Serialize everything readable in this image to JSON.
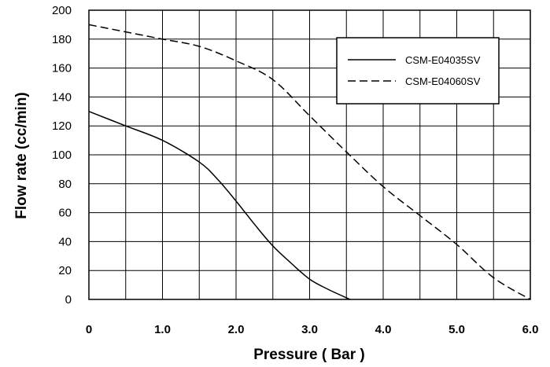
{
  "chart_data": {
    "type": "line",
    "xlabel": "Pressure ( Bar )",
    "ylabel": "Flow rate (cc/min)",
    "xlim": [
      0,
      6.0
    ],
    "ylim": [
      0,
      200
    ],
    "x_ticks": [
      "0",
      "1.0",
      "2.0",
      "3.0",
      "4.0",
      "5.0",
      "6.0"
    ],
    "x_tick_values": [
      0,
      1,
      2,
      3,
      4,
      5,
      6
    ],
    "y_ticks": [
      "0",
      "20",
      "40",
      "60",
      "80",
      "100",
      "120",
      "140",
      "160",
      "180",
      "200"
    ],
    "y_tick_values": [
      0,
      20,
      40,
      60,
      80,
      100,
      120,
      140,
      160,
      180,
      200
    ],
    "grid": true,
    "grid_x_step": 0.5,
    "grid_y_step": 20,
    "legend_position": "top-right",
    "series": [
      {
        "name": "CSM-E04035SV",
        "style": "solid",
        "color": "#000000",
        "x": [
          0,
          0.5,
          1.0,
          1.5,
          1.75,
          2.0,
          2.25,
          2.5,
          2.75,
          3.0,
          3.25,
          3.55
        ],
        "y": [
          130,
          120,
          110,
          95,
          83,
          68,
          52,
          37,
          25,
          14,
          7,
          0
        ]
      },
      {
        "name": "CSM-E04060SV",
        "style": "dashed",
        "color": "#000000",
        "x": [
          0,
          0.5,
          1.0,
          1.5,
          2.0,
          2.5,
          3.0,
          3.5,
          4.0,
          4.5,
          5.0,
          5.5,
          6.0
        ],
        "y": [
          190,
          185,
          180,
          175,
          165,
          152,
          127,
          102,
          78,
          58,
          38,
          15,
          0
        ]
      }
    ]
  }
}
